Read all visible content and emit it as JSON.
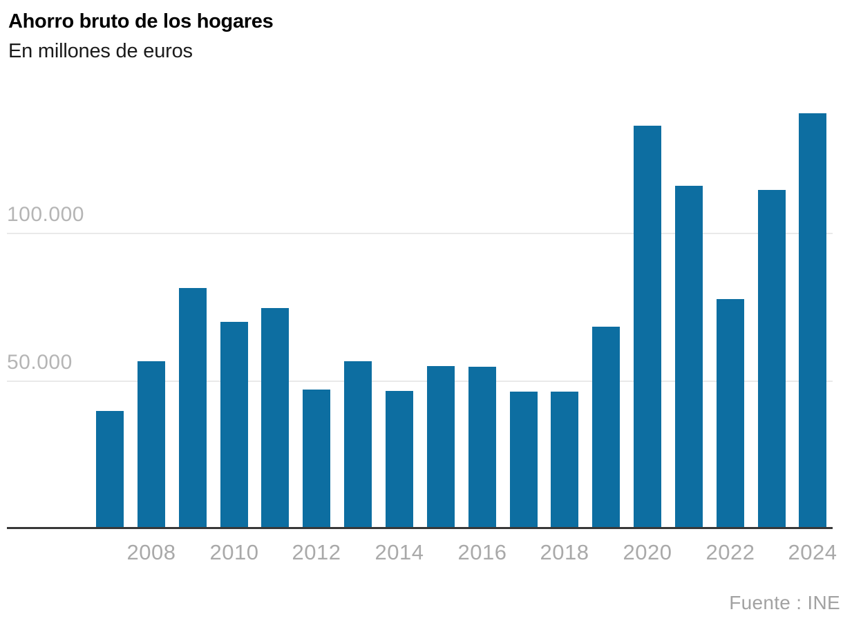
{
  "header": {
    "title": "Ahorro bruto de los hogares",
    "subtitle": "En millones de euros"
  },
  "source": {
    "label": "Fuente : INE"
  },
  "colors": {
    "bar": "#0d6ea1",
    "axis": "#383838",
    "grid": "#e9e9e9",
    "y_tick": "#b5b5b5",
    "x_tick": "#a9a9a9",
    "title": "#000000",
    "source": "#a2a2a2"
  },
  "chart_data": {
    "type": "bar",
    "title": "Ahorro bruto de los hogares",
    "subtitle": "En millones de euros",
    "xlabel": "",
    "ylabel": "En millones de euros",
    "categories": [
      2007,
      2008,
      2009,
      2010,
      2011,
      2012,
      2013,
      2014,
      2015,
      2016,
      2017,
      2018,
      2019,
      2020,
      2021,
      2022,
      2023,
      2024
    ],
    "values": [
      39300,
      56100,
      80800,
      69400,
      74100,
      46500,
      56100,
      46000,
      54400,
      54300,
      45800,
      45700,
      67800,
      135700,
      115400,
      77100,
      114000,
      140000
    ],
    "ylim": [
      0,
      141000
    ],
    "yticks": [
      50000,
      100000
    ],
    "ytick_labels": [
      "50.000",
      "100.000"
    ],
    "xticks": [
      2008,
      2010,
      2012,
      2014,
      2016,
      2018,
      2020,
      2022,
      2024
    ],
    "grid": "horizontal-only",
    "legend": false,
    "bar_color": "#0d6ea1",
    "source": "Fuente : INE"
  }
}
